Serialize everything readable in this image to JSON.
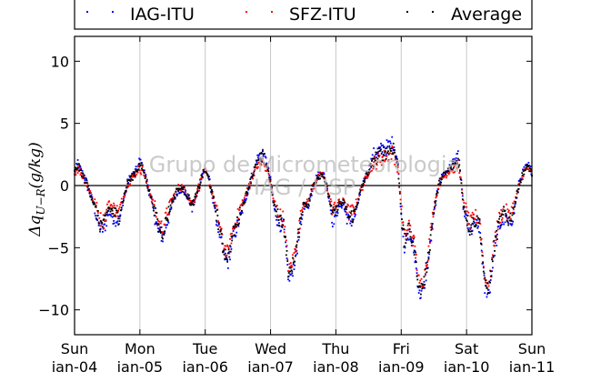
{
  "chart_data": {
    "type": "scatter",
    "ylabel": "Δq_{U−R}(g/kg)",
    "ylim": [
      -12,
      12
    ],
    "yticks": [
      -10,
      -5,
      0,
      5,
      10
    ],
    "xlim": [
      0,
      7
    ],
    "xticks": [
      {
        "day": "Sun",
        "date": "jan-04"
      },
      {
        "day": "Mon",
        "date": "jan-05"
      },
      {
        "day": "Tue",
        "date": "jan-06"
      },
      {
        "day": "Wed",
        "date": "jan-07"
      },
      {
        "day": "Thu",
        "date": "jan-08"
      },
      {
        "day": "Fri",
        "date": "jan-09"
      },
      {
        "day": "Sat",
        "date": "jan-10"
      },
      {
        "day": "Sun",
        "date": "jan-11"
      }
    ],
    "grid": "vertical",
    "reference_line": 0,
    "legend_position": "top",
    "watermark": [
      "Grupo de Micrometeorologia",
      "IAG / USP"
    ],
    "series": [
      {
        "name": "IAG-ITU",
        "color": "#0000ff",
        "offset": 0.35
      },
      {
        "name": "SFZ-ITU",
        "color": "#ff0000",
        "offset": -0.35
      },
      {
        "name": "Average",
        "color": "#000000",
        "offset": 0
      }
    ],
    "x": [
      0,
      0.05,
      0.08,
      0.15,
      0.22,
      0.3,
      0.38,
      0.45,
      0.52,
      0.6,
      0.68,
      0.75,
      0.82,
      0.9,
      0.95,
      1.0,
      1.05,
      1.12,
      1.2,
      1.28,
      1.35,
      1.42,
      1.5,
      1.58,
      1.65,
      1.72,
      1.8,
      1.88,
      1.95,
      2.0,
      2.05,
      2.12,
      2.2,
      2.28,
      2.35,
      2.42,
      2.5,
      2.58,
      2.65,
      2.72,
      2.8,
      2.88,
      2.95,
      3.0,
      3.05,
      3.12,
      3.2,
      3.28,
      3.35,
      3.42,
      3.5,
      3.58,
      3.65,
      3.72,
      3.8,
      3.88,
      3.95,
      4.0,
      4.05,
      4.12,
      4.2,
      4.28,
      4.35,
      4.42,
      4.5,
      4.58,
      4.65,
      4.72,
      4.8,
      4.88,
      4.95,
      5.0,
      5.05,
      5.12,
      5.2,
      5.28,
      5.35,
      5.42,
      5.5,
      5.58,
      5.65,
      5.72,
      5.8,
      5.88,
      5.95,
      6.0,
      6.05,
      6.12,
      6.2,
      6.28,
      6.35,
      6.42,
      6.5,
      6.58,
      6.65,
      6.72,
      6.8,
      6.88,
      6.95,
      7.0
    ],
    "values": [
      1.0,
      1.6,
      1.3,
      0.6,
      -0.3,
      -1.5,
      -3.0,
      -3.2,
      -1.8,
      -2.2,
      -2.5,
      -1.0,
      0.3,
      0.8,
      1.2,
      1.7,
      1.3,
      0.0,
      -1.5,
      -3.3,
      -3.8,
      -2.5,
      -1.2,
      -0.3,
      -0.2,
      -0.7,
      -1.6,
      -0.6,
      0.8,
      1.2,
      0.6,
      -1.0,
      -3.0,
      -5.2,
      -5.8,
      -4.0,
      -2.8,
      -1.5,
      -0.4,
      0.8,
      1.9,
      2.2,
      1.5,
      0.3,
      -1.5,
      -2.6,
      -3.0,
      -7.3,
      -6.2,
      -4.3,
      -1.5,
      -1.5,
      0.0,
      0.7,
      1.0,
      -0.5,
      -2.4,
      -2.0,
      -1.5,
      -1.4,
      -2.6,
      -2.3,
      -1.0,
      0.2,
      1.2,
      2.1,
      2.4,
      2.6,
      2.8,
      3.1,
      1.5,
      -2.0,
      -4.6,
      -3.5,
      -5.0,
      -8.5,
      -7.8,
      -5.5,
      -2.0,
      0.2,
      0.8,
      1.2,
      1.6,
      2.1,
      -1.5,
      -2.5,
      -3.5,
      -2.8,
      -3.0,
      -8.0,
      -8.2,
      -5.0,
      -3.0,
      -2.2,
      -2.8,
      -2.0,
      0.0,
      1.2,
      1.5,
      1.0
    ]
  }
}
